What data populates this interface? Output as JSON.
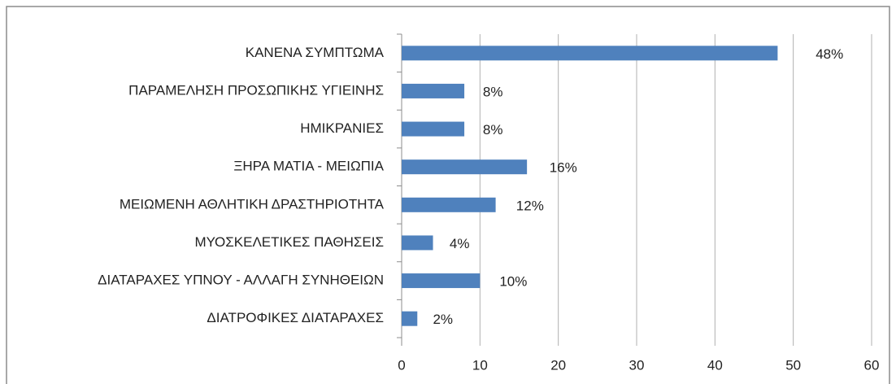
{
  "chart_data": {
    "type": "bar",
    "orientation": "horizontal",
    "categories": [
      "ΚΑΝΕΝΑ ΣΥΜΠΤΩΜΑ",
      "ΠΑΡΑΜΕΛΗΣΗ ΠΡΟΣΩΠΙΚΗΣ ΥΓΙΕΙΝΗΣ",
      "ΗΜΙΚΡΑΝΙΕΣ",
      "ΞΗΡΑ ΜΑΤΙΑ - ΜΕΙΩΠΙΑ",
      "ΜΕΙΩΜΕΝΗ ΑΘΛΗΤΙΚΗ ΔΡΑΣΤΗΡΙΟΤΗΤΑ",
      "ΜΥΟΣΚΕΛΕΤΙΚΕΣ ΠΑΘΗΣΕΙΣ",
      "ΔΙΑΤΑΡΑΧΕΣ ΥΠΝΟΥ - ΑΛΛΑΓΗ ΣΥΝΗΘΕΙΩΝ",
      "ΔΙΑΤΡΟΦΙΚΕΣ ΔΙΑΤΑΡΑΧΕΣ"
    ],
    "values": [
      48,
      8,
      8,
      16,
      12,
      4,
      10,
      2
    ],
    "value_labels": [
      "48%",
      "8%",
      "8%",
      "16%",
      "12%",
      "4%",
      "10%",
      "2%"
    ],
    "color": "#4f81bd",
    "xlim": [
      0,
      60
    ],
    "xticks": [
      0,
      10,
      20,
      30,
      40,
      50,
      60
    ],
    "grid": true
  }
}
